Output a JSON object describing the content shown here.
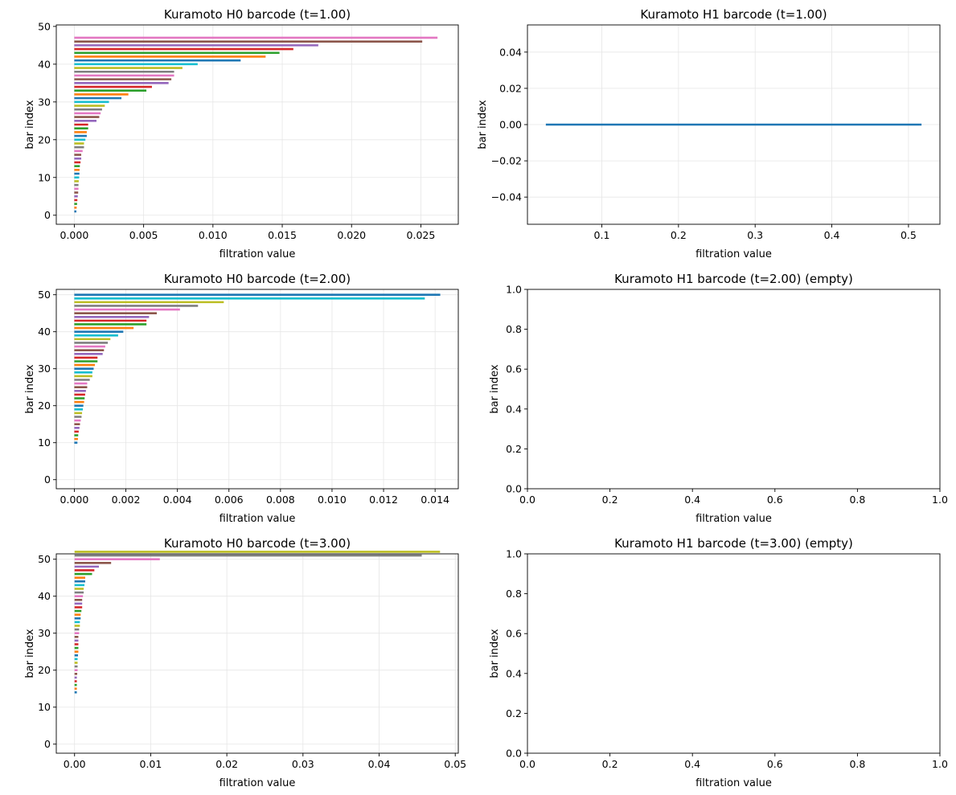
{
  "chart_data": [
    {
      "id": "h0_t1",
      "type": "barcode",
      "title": "Kuramoto H0 barcode (t=1.00)",
      "xlabel": "filtration value",
      "ylabel": "bar index",
      "xlim": [
        -0.0013,
        0.0277
      ],
      "ylim": [
        -2.4,
        50.4
      ],
      "xticks": [
        0.0,
        0.005,
        0.01,
        0.015,
        0.02,
        0.025
      ],
      "xtick_labels": [
        "0.000",
        "0.005",
        "0.010",
        "0.015",
        "0.020",
        "0.025"
      ],
      "yticks": [
        0,
        10,
        20,
        30,
        40,
        50
      ],
      "ytick_labels": [
        "0",
        "10",
        "20",
        "30",
        "40",
        "50"
      ],
      "grid": true,
      "bars": {
        "index_start": 1,
        "birth": 0,
        "death": [
          0.00015,
          0.00017,
          0.0002,
          0.00022,
          0.00025,
          0.00028,
          0.0003,
          0.0003,
          0.00032,
          0.00035,
          0.00037,
          0.00038,
          0.0004,
          0.00045,
          0.0005,
          0.0005,
          0.0006,
          0.0007,
          0.0007,
          0.0008,
          0.0009,
          0.0009,
          0.001,
          0.001,
          0.0016,
          0.0018,
          0.0019,
          0.002,
          0.0022,
          0.0025,
          0.0034,
          0.0039,
          0.0052,
          0.0056,
          0.0068,
          0.007,
          0.0072,
          0.0072,
          0.0078,
          0.0089,
          0.012,
          0.0138,
          0.0148,
          0.0158,
          0.0176,
          0.0251,
          0.0262
        ]
      }
    },
    {
      "id": "h1_t1",
      "type": "barcode",
      "title": "Kuramoto H1 barcode (t=1.00)",
      "xlabel": "filtration value",
      "ylabel": "bar index",
      "xlim": [
        0.003,
        0.541
      ],
      "ylim": [
        -0.055,
        0.055
      ],
      "xticks": [
        0.1,
        0.2,
        0.3,
        0.4,
        0.5
      ],
      "xtick_labels": [
        "0.1",
        "0.2",
        "0.3",
        "0.4",
        "0.5"
      ],
      "yticks": [
        -0.04,
        -0.02,
        0.0,
        0.02,
        0.04
      ],
      "ytick_labels": [
        "−0.04",
        "−0.02",
        "0.00",
        "0.02",
        "0.04"
      ],
      "grid": true,
      "bars": {
        "index_start": 0,
        "intervals": [
          [
            0.027,
            0.517
          ]
        ]
      }
    },
    {
      "id": "h0_t2",
      "type": "barcode",
      "title": "Kuramoto H0 barcode (t=2.00)",
      "xlabel": "filtration value",
      "ylabel": "bar index",
      "xlim": [
        -0.0007,
        0.0149
      ],
      "ylim": [
        -2.45,
        51.45
      ],
      "xticks": [
        0.0,
        0.002,
        0.004,
        0.006,
        0.008,
        0.01,
        0.012,
        0.014
      ],
      "xtick_labels": [
        "0.000",
        "0.002",
        "0.004",
        "0.006",
        "0.008",
        "0.010",
        "0.012",
        "0.014"
      ],
      "yticks": [
        0,
        10,
        20,
        30,
        40,
        50
      ],
      "ytick_labels": [
        "0",
        "10",
        "20",
        "30",
        "40",
        "50"
      ],
      "grid": true,
      "bars": {
        "index_start": 10,
        "birth": 0,
        "death": [
          0.00012,
          0.00014,
          0.00015,
          0.00017,
          0.0002,
          0.00022,
          0.00025,
          0.00028,
          0.0003,
          0.00033,
          0.00035,
          0.00038,
          0.0004,
          0.00042,
          0.00045,
          0.0005,
          0.0005,
          0.0006,
          0.0007,
          0.0007,
          0.00075,
          0.0008,
          0.0009,
          0.0009,
          0.0011,
          0.00115,
          0.0012,
          0.0013,
          0.0014,
          0.0017,
          0.0019,
          0.0023,
          0.0028,
          0.0028,
          0.0029,
          0.0032,
          0.0041,
          0.0048,
          0.0058,
          0.0136,
          0.0142
        ]
      }
    },
    {
      "id": "h1_t2",
      "type": "barcode",
      "title": "Kuramoto H1 barcode (t=2.00) (empty)",
      "xlabel": "filtration value",
      "ylabel": "bar index",
      "xlim": [
        0,
        1
      ],
      "ylim": [
        0,
        1
      ],
      "xticks": [
        0,
        0.2,
        0.4,
        0.6,
        0.8,
        1.0
      ],
      "xtick_labels": [
        "0.0",
        "0.2",
        "0.4",
        "0.6",
        "0.8",
        "1.0"
      ],
      "yticks": [
        0,
        0.2,
        0.4,
        0.6,
        0.8,
        1.0
      ],
      "ytick_labels": [
        "0.0",
        "0.2",
        "0.4",
        "0.6",
        "0.8",
        "1.0"
      ],
      "grid": false,
      "bars": null
    },
    {
      "id": "h0_t3",
      "type": "barcode",
      "title": "Kuramoto H0 barcode (t=3.00)",
      "xlabel": "filtration value",
      "ylabel": "bar index",
      "xlim": [
        -0.0024,
        0.0504
      ],
      "ylim": [
        -2.45,
        51.45
      ],
      "xticks": [
        0.0,
        0.01,
        0.02,
        0.03,
        0.04,
        0.05
      ],
      "xtick_labels": [
        "0.00",
        "0.01",
        "0.02",
        "0.03",
        "0.04",
        "0.05"
      ],
      "yticks": [
        0,
        10,
        20,
        30,
        40,
        50
      ],
      "ytick_labels": [
        "0",
        "10",
        "20",
        "30",
        "40",
        "50"
      ],
      "grid": true,
      "bars": {
        "index_start": 14,
        "birth": 0,
        "death": [
          0.0003,
          0.0003,
          0.0003,
          0.0003,
          0.0003,
          0.00035,
          0.0004,
          0.0004,
          0.0004,
          0.0004,
          0.00045,
          0.0005,
          0.0005,
          0.0005,
          0.0005,
          0.0005,
          0.0006,
          0.0006,
          0.0007,
          0.0007,
          0.0008,
          0.0008,
          0.0009,
          0.001,
          0.001,
          0.001,
          0.0011,
          0.0012,
          0.0012,
          0.0013,
          0.0014,
          0.0014,
          0.0023,
          0.0026,
          0.0032,
          0.0048,
          0.0112,
          0.0456,
          0.048
        ]
      }
    },
    {
      "id": "h1_t3",
      "type": "barcode",
      "title": "Kuramoto H1 barcode (t=3.00) (empty)",
      "xlabel": "filtration value",
      "ylabel": "bar index",
      "xlim": [
        0,
        1
      ],
      "ylim": [
        0,
        1
      ],
      "xticks": [
        0,
        0.2,
        0.4,
        0.6,
        0.8,
        1.0
      ],
      "xtick_labels": [
        "0.0",
        "0.2",
        "0.4",
        "0.6",
        "0.8",
        "1.0"
      ],
      "yticks": [
        0,
        0.2,
        0.4,
        0.6,
        0.8,
        1.0
      ],
      "ytick_labels": [
        "0.0",
        "0.2",
        "0.4",
        "0.6",
        "0.8",
        "1.0"
      ],
      "grid": false,
      "bars": null
    }
  ],
  "colors": {
    "cycle": [
      "#1f77b4",
      "#ff7f0e",
      "#2ca02c",
      "#d62728",
      "#9467bd",
      "#8c564b",
      "#e377c2",
      "#7f7f7f",
      "#bcbd22",
      "#17becf"
    ],
    "grid": "#e6e6e6",
    "axes": "#000000"
  }
}
